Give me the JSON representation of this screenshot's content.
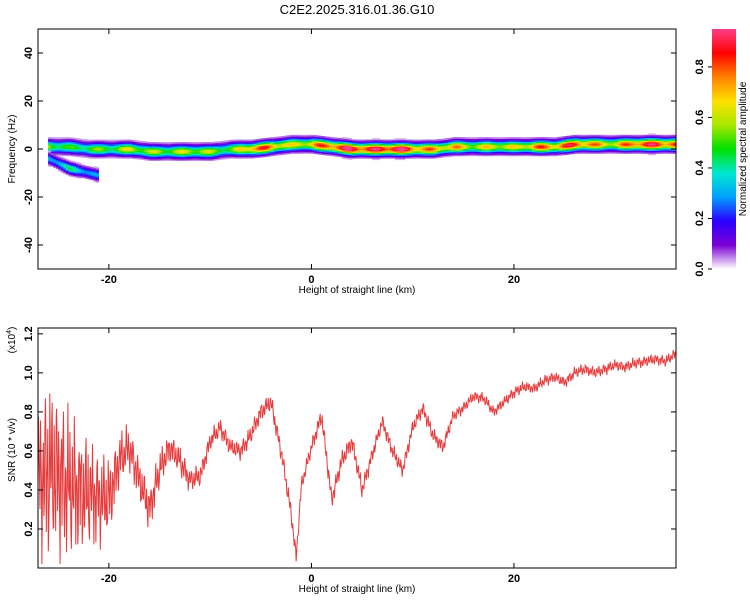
{
  "title": "C2E2.2025.316.01.36.G10",
  "chart_data": [
    {
      "type": "heatmap",
      "xlabel": "Height of straight line (km)",
      "ylabel": "Frequency (Hz)",
      "xlim": [
        -27,
        36
      ],
      "ylim": [
        -50,
        50
      ],
      "xticks": [
        -20,
        0,
        20
      ],
      "yticks": [
        40,
        20,
        0,
        -20,
        -40
      ],
      "colorbar": {
        "label": "Normalized spectral amplitude",
        "range": [
          0.0,
          0.95
        ],
        "ticks": [
          0.0,
          0.2,
          0.4,
          0.6,
          0.8
        ],
        "tick_labels": [
          "0.0",
          "0.2",
          "0.4",
          "0.6",
          "0.8"
        ],
        "colors": [
          "#ffffff",
          "#7b00d4",
          "#2a00ff",
          "#00a0ff",
          "#00e8d0",
          "#00e000",
          "#a8e800",
          "#ffe000",
          "#ff8000",
          "#ff0000",
          "#ff3e8a"
        ]
      },
      "ridge": {
        "x": [
          -26,
          -24,
          -22,
          -20,
          -18,
          -16,
          -14,
          -12,
          -10,
          -8,
          -6,
          -4,
          -2,
          0,
          2,
          4,
          6,
          8,
          10,
          12,
          14,
          16,
          18,
          20,
          22,
          24,
          26,
          28,
          30,
          32,
          34,
          36
        ],
        "frequency": [
          1,
          1,
          0,
          0,
          0,
          -1,
          -1,
          -1,
          -1,
          0,
          0,
          1,
          2,
          2,
          1,
          0,
          0,
          0,
          0,
          0,
          1,
          1,
          1,
          1,
          1,
          1,
          2,
          2,
          2,
          2,
          2,
          2
        ],
        "amplitude": [
          0.55,
          0.45,
          0.5,
          0.5,
          0.6,
          0.55,
          0.55,
          0.6,
          0.55,
          0.5,
          0.8,
          0.75,
          0.6,
          0.7,
          0.85,
          0.9,
          0.85,
          0.95,
          0.8,
          0.7,
          0.7,
          0.6,
          0.65,
          0.6,
          0.75,
          0.75,
          0.85,
          0.7,
          0.65,
          0.85,
          0.85,
          0.8
        ]
      },
      "side_branch": {
        "x": [
          -26,
          -25,
          -24,
          -23,
          -22,
          -21
        ],
        "frequency": [
          -4,
          -6,
          -8,
          -9,
          -10,
          -11
        ],
        "amplitude": [
          0.3,
          0.35,
          0.4,
          0.35,
          0.3,
          0.25
        ]
      }
    },
    {
      "type": "line",
      "xlabel": "Height of straight line (km)",
      "ylabel": "SNR (10 * v/v)",
      "exponent_label": "(x10",
      "exponent": "4",
      "xlim": [
        -27,
        36
      ],
      "ylim": [
        0.0,
        1.23
      ],
      "xticks": [
        -20,
        0,
        20
      ],
      "yticks": [
        0.2,
        0.4,
        0.6,
        0.8,
        1.0,
        1.2
      ],
      "ytick_labels": [
        "0.2",
        "0.4",
        "0.6",
        "0.8",
        "1.0",
        "1.2"
      ],
      "color": "#e8393a",
      "series": [
        {
          "x": [
            -27,
            -26,
            -25,
            -24,
            -23,
            -22,
            -21,
            -20,
            -19,
            -18,
            -17,
            -16,
            -15,
            -14,
            -13,
            -12,
            -11,
            -10,
            -9,
            -8,
            -7,
            -6,
            -5,
            -4,
            -3,
            -2,
            -1.5,
            -1,
            0,
            1,
            2,
            3,
            4,
            5,
            6,
            7,
            8,
            9,
            10,
            11,
            12,
            13,
            14,
            15,
            16,
            17,
            18,
            19,
            20,
            21,
            22,
            23,
            24,
            25,
            26,
            27,
            28,
            29,
            30,
            31,
            32,
            33,
            34,
            35,
            36
          ],
          "center": [
            0.45,
            0.5,
            0.48,
            0.42,
            0.4,
            0.38,
            0.36,
            0.35,
            0.55,
            0.62,
            0.45,
            0.3,
            0.5,
            0.62,
            0.55,
            0.45,
            0.47,
            0.65,
            0.72,
            0.62,
            0.6,
            0.68,
            0.8,
            0.85,
            0.6,
            0.28,
            0.05,
            0.42,
            0.62,
            0.78,
            0.35,
            0.55,
            0.65,
            0.4,
            0.58,
            0.75,
            0.6,
            0.5,
            0.72,
            0.82,
            0.68,
            0.62,
            0.78,
            0.82,
            0.88,
            0.87,
            0.8,
            0.85,
            0.9,
            0.93,
            0.92,
            0.96,
            0.98,
            0.95,
            1.0,
            1.02,
            1.0,
            1.02,
            1.04,
            1.03,
            1.05,
            1.06,
            1.07,
            1.06,
            1.1
          ],
          "spread": [
            0.4,
            0.5,
            0.45,
            0.4,
            0.35,
            0.3,
            0.25,
            0.22,
            0.15,
            0.12,
            0.12,
            0.12,
            0.1,
            0.08,
            0.08,
            0.06,
            0.06,
            0.05,
            0.05,
            0.05,
            0.05,
            0.05,
            0.05,
            0.05,
            0.05,
            0.05,
            0.04,
            0.04,
            0.04,
            0.05,
            0.05,
            0.05,
            0.05,
            0.05,
            0.04,
            0.04,
            0.04,
            0.04,
            0.04,
            0.04,
            0.04,
            0.04,
            0.03,
            0.03,
            0.03,
            0.03,
            0.03,
            0.03,
            0.03,
            0.03,
            0.03,
            0.03,
            0.03,
            0.03,
            0.03,
            0.03,
            0.03,
            0.03,
            0.03,
            0.03,
            0.03,
            0.03,
            0.03,
            0.03,
            0.03
          ]
        }
      ]
    }
  ]
}
